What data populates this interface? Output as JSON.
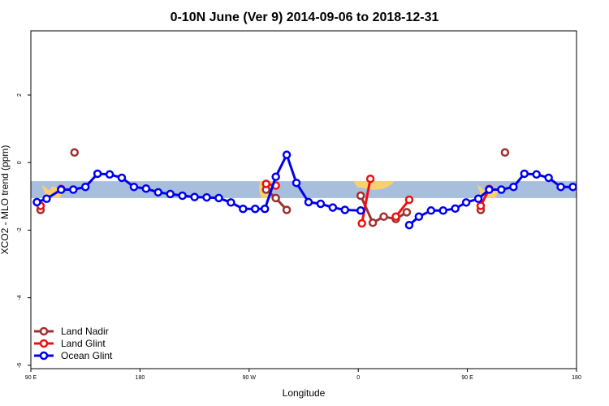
{
  "chart_data": {
    "type": "line",
    "title": "0-10N June (Ver 9)   2014-09-06 to 2018-12-31",
    "xlabel": "Longitude",
    "ylabel": "XCO2 - MLO trend (ppm)",
    "xlim": [
      90,
      540
    ],
    "ylim": [
      -6.1,
      3.9
    ],
    "x_ticks": [
      {
        "value": 90,
        "label": "90 E"
      },
      {
        "value": 180,
        "label": "180"
      },
      {
        "value": 270,
        "label": "90 W"
      },
      {
        "value": 360,
        "label": "0"
      },
      {
        "value": 450,
        "label": "90 E"
      },
      {
        "value": 540,
        "label": "180"
      }
    ],
    "y_ticks": [
      {
        "value": 2,
        "label": "2"
      },
      {
        "value": 0,
        "label": "0"
      },
      {
        "value": -2,
        "label": "-2"
      },
      {
        "value": -4,
        "label": "-4"
      },
      {
        "value": -6,
        "label": "-6"
      }
    ],
    "land_band": {
      "y_range": [
        -1.05,
        -0.55
      ],
      "color": "#a8bedd",
      "land_color": "#f8d070"
    },
    "legend_position": "bottom-left",
    "series": [
      {
        "name": "Land Nadir",
        "color": "#a03030",
        "segments": [
          {
            "x": [
              98
            ],
            "y": [
              -1.4
            ]
          },
          {
            "x": [
              126
            ],
            "y": [
              0.3
            ]
          },
          {
            "x": [
              284,
              292,
              301
            ],
            "y": [
              -0.8,
              -1.05,
              -1.4
            ]
          },
          {
            "x": [
              362,
              372,
              381,
              391,
              400
            ],
            "y": [
              -0.98,
              -1.78,
              -1.6,
              -1.67,
              -1.47
            ]
          },
          {
            "x": [
              461
            ],
            "y": [
              -1.4
            ]
          },
          {
            "x": [
              481
            ],
            "y": [
              0.3
            ]
          }
        ]
      },
      {
        "name": "Land Glint",
        "color": "#ee1010",
        "segments": [
          {
            "x": [
              98
            ],
            "y": [
              -1.28
            ]
          },
          {
            "x": [
              115
            ],
            "y": [
              -0.78
            ]
          },
          {
            "x": [
              284,
              292
            ],
            "y": [
              -0.63,
              -0.68
            ]
          },
          {
            "x": [
              363,
              370
            ],
            "y": [
              -1.8,
              -0.48
            ]
          },
          {
            "x": [
              391,
              402
            ],
            "y": [
              -1.6,
              -1.1
            ]
          },
          {
            "x": [
              461,
              468
            ],
            "y": [
              -1.28,
              -0.78
            ]
          }
        ]
      },
      {
        "name": "Ocean Glint",
        "color": "#0000ee",
        "segments": [
          {
            "x": [
              95,
              103,
              115,
              125,
              135,
              145,
              155,
              165,
              175,
              185,
              195,
              205,
              215,
              225,
              235,
              245,
              255,
              265,
              275,
              283,
              292,
              301,
              309,
              319,
              329,
              339,
              349,
              362
            ],
            "y": [
              -1.17,
              -1.07,
              -0.8,
              -0.8,
              -0.72,
              -0.33,
              -0.35,
              -0.45,
              -0.72,
              -0.77,
              -0.88,
              -0.93,
              -0.98,
              -1.02,
              -1.03,
              -1.05,
              -1.18,
              -1.37,
              -1.37,
              -1.37,
              -0.42,
              0.23,
              -0.6,
              -1.17,
              -1.22,
              -1.33,
              -1.4,
              -1.42
            ]
          },
          {
            "x": [
              402,
              410,
              420,
              430,
              440,
              449,
              459,
              468,
              478,
              488,
              497,
              507,
              517,
              527,
              537
            ],
            "y": [
              -1.85,
              -1.6,
              -1.42,
              -1.42,
              -1.36,
              -1.18,
              -1.07,
              -0.8,
              -0.8,
              -0.72,
              -0.33,
              -0.35,
              -0.45,
              -0.72,
              -0.72
            ]
          }
        ]
      }
    ]
  }
}
